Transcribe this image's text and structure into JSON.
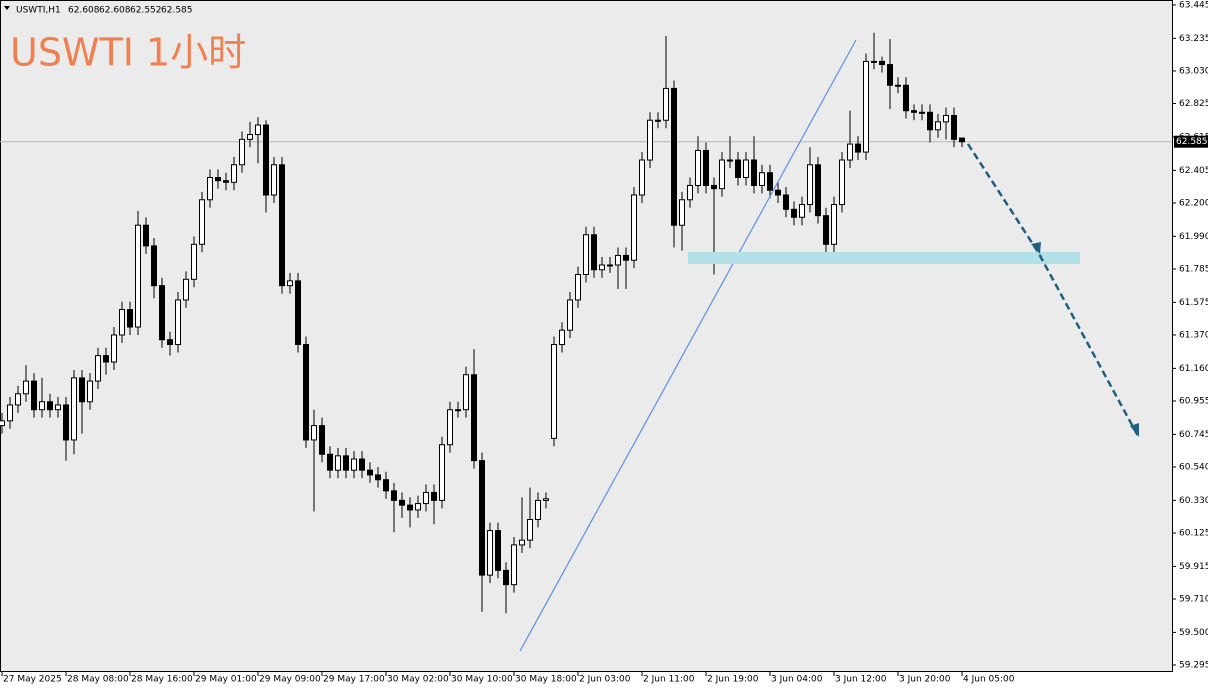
{
  "chart_data": {
    "type": "candlestick",
    "title": "USWTI 1小时",
    "symbol": "USWTI,H1",
    "open": [
      60.8,
      60.83,
      60.93,
      61.0,
      61.08,
      60.9,
      60.95,
      60.9,
      60.93,
      60.71,
      61.1,
      60.95,
      61.08,
      61.24,
      61.2,
      61.37,
      61.53,
      61.42,
      62.06,
      61.93,
      61.68,
      61.34,
      61.31,
      61.59,
      61.72,
      61.94,
      62.22,
      62.36,
      62.34,
      62.33,
      62.44,
      62.6,
      62.63,
      62.69,
      62.25,
      62.44,
      61.68,
      61.71,
      61.31,
      60.71,
      60.8,
      60.62,
      60.52,
      60.61,
      60.52,
      60.59,
      60.52,
      60.49,
      60.46,
      60.39,
      60.33,
      60.3,
      60.27,
      60.31,
      60.38,
      60.33,
      60.68,
      60.9,
      60.9,
      61.12,
      60.58,
      59.86,
      60.14,
      59.89,
      59.8,
      60.05,
      60.08,
      60.21,
      60.33,
      60.72,
      61.31,
      61.4,
      61.59,
      61.75,
      62.0,
      61.78,
      61.81,
      61.81,
      61.87,
      61.84,
      62.25,
      62.47,
      62.72,
      62.72,
      62.92,
      62.06,
      62.22,
      62.31,
      62.53,
      62.31,
      62.29,
      62.47,
      62.47,
      62.36,
      62.47,
      62.31,
      62.39,
      62.28,
      62.25,
      62.16,
      62.11,
      62.19,
      62.44,
      62.12,
      61.94,
      62.19,
      62.47,
      62.57,
      62.52,
      63.09,
      63.09,
      63.07,
      62.94,
      62.94,
      62.78,
      62.77,
      62.77,
      62.66,
      62.71,
      62.75,
      62.608
    ],
    "high": [
      60.88,
      60.98,
      61.05,
      61.18,
      61.13,
      61.1,
      61.0,
      60.98,
      60.98,
      61.15,
      61.15,
      61.13,
      61.29,
      61.29,
      61.42,
      61.58,
      61.58,
      62.15,
      62.11,
      61.98,
      61.73,
      61.39,
      61.64,
      61.77,
      61.99,
      62.27,
      62.41,
      62.41,
      62.39,
      62.49,
      62.65,
      62.71,
      62.74,
      62.72,
      62.49,
      62.49,
      61.76,
      61.76,
      61.36,
      60.9,
      60.85,
      60.67,
      60.66,
      60.66,
      60.64,
      60.64,
      60.57,
      60.54,
      60.51,
      60.44,
      60.38,
      60.35,
      60.36,
      60.43,
      60.43,
      60.73,
      60.95,
      60.95,
      61.17,
      61.28,
      60.63,
      60.19,
      60.19,
      59.94,
      60.1,
      60.35,
      60.41,
      60.38,
      60.38,
      61.36,
      61.45,
      61.64,
      61.8,
      62.05,
      62.05,
      61.86,
      61.86,
      61.92,
      61.92,
      62.3,
      62.52,
      62.77,
      62.77,
      63.25,
      62.97,
      62.27,
      62.36,
      62.62,
      62.58,
      62.36,
      62.52,
      62.62,
      62.52,
      62.52,
      62.62,
      62.44,
      62.44,
      62.33,
      62.3,
      62.21,
      62.24,
      62.55,
      62.49,
      62.17,
      62.24,
      62.52,
      62.78,
      62.62,
      63.14,
      63.27,
      63.12,
      63.23,
      62.99,
      62.99,
      62.82,
      62.82,
      62.82,
      62.76,
      62.8,
      62.8,
      62.608
    ],
    "low": [
      60.75,
      60.78,
      60.88,
      60.95,
      60.85,
      60.85,
      60.85,
      60.85,
      60.58,
      60.62,
      60.75,
      60.9,
      61.03,
      61.12,
      61.15,
      61.32,
      61.37,
      61.37,
      61.88,
      61.6,
      61.29,
      61.24,
      61.26,
      61.54,
      61.67,
      61.89,
      62.17,
      62.29,
      62.28,
      62.28,
      62.39,
      62.55,
      62.45,
      62.14,
      62.2,
      61.63,
      61.63,
      61.26,
      60.66,
      60.26,
      60.57,
      60.47,
      60.47,
      60.47,
      60.47,
      60.47,
      60.44,
      60.41,
      60.34,
      60.13,
      60.22,
      60.16,
      60.22,
      60.26,
      60.18,
      60.28,
      60.63,
      60.85,
      60.85,
      60.53,
      59.63,
      59.81,
      59.84,
      59.62,
      59.75,
      60.0,
      60.03,
      60.16,
      60.28,
      60.67,
      61.26,
      61.35,
      61.54,
      61.7,
      61.73,
      61.73,
      61.76,
      61.66,
      61.66,
      61.79,
      62.2,
      62.42,
      62.67,
      62.67,
      61.92,
      61.9,
      62.17,
      62.26,
      62.26,
      61.75,
      62.24,
      62.42,
      62.31,
      62.31,
      62.26,
      62.26,
      62.23,
      62.2,
      62.11,
      62.06,
      62.06,
      62.14,
      62.07,
      61.83,
      61.89,
      62.14,
      62.42,
      62.47,
      62.47,
      63.04,
      63.02,
      62.79,
      62.89,
      62.73,
      62.72,
      62.72,
      62.58,
      62.61,
      62.6,
      62.55,
      62.552
    ],
    "close": [
      60.83,
      60.93,
      61.0,
      61.08,
      60.9,
      60.95,
      60.9,
      60.93,
      60.71,
      61.1,
      60.95,
      61.08,
      61.24,
      61.2,
      61.37,
      61.53,
      61.42,
      62.06,
      61.93,
      61.68,
      61.34,
      61.31,
      61.59,
      61.72,
      61.94,
      62.22,
      62.36,
      62.34,
      62.33,
      62.44,
      62.6,
      62.63,
      62.69,
      62.25,
      62.44,
      61.68,
      61.71,
      61.31,
      60.71,
      60.8,
      60.62,
      60.52,
      60.61,
      60.52,
      60.59,
      60.52,
      60.49,
      60.46,
      60.39,
      60.33,
      60.3,
      60.27,
      60.31,
      60.38,
      60.33,
      60.68,
      60.9,
      60.9,
      61.12,
      60.58,
      59.86,
      60.14,
      59.89,
      59.8,
      60.05,
      60.08,
      60.21,
      60.33,
      60.34,
      61.31,
      61.4,
      61.59,
      61.75,
      62.0,
      61.78,
      61.81,
      61.81,
      61.87,
      61.84,
      62.25,
      62.47,
      62.72,
      62.72,
      62.92,
      62.06,
      62.22,
      62.31,
      62.53,
      62.31,
      62.29,
      62.47,
      62.47,
      62.36,
      62.47,
      62.31,
      62.39,
      62.28,
      62.25,
      62.16,
      62.11,
      62.19,
      62.44,
      62.12,
      61.94,
      62.19,
      62.47,
      62.57,
      62.52,
      63.09,
      63.09,
      63.07,
      62.94,
      62.94,
      62.78,
      62.77,
      62.77,
      62.66,
      62.71,
      62.75,
      62.6,
      62.585
    ],
    "xlim": [
      -0.25,
      146.25
    ],
    "xticks": [
      {
        "value": 0,
        "label": "27 May 2025"
      },
      {
        "value": 8,
        "label": "28 May 08:00"
      },
      {
        "value": 16,
        "label": "28 May 16:00"
      },
      {
        "value": 24,
        "label": "29 May 01:00"
      },
      {
        "value": 32,
        "label": "29 May 09:00"
      },
      {
        "value": 40,
        "label": "29 May 17:00"
      },
      {
        "value": 48,
        "label": "30 May 02:00"
      },
      {
        "value": 56,
        "label": "30 May 10:00"
      },
      {
        "value": 64,
        "label": "30 May 18:00"
      },
      {
        "value": 72,
        "label": "2 Jun 03:00"
      },
      {
        "value": 80,
        "label": "2 Jun 11:00"
      },
      {
        "value": 88,
        "label": "2 Jun 19:00"
      },
      {
        "value": 96,
        "label": "3 Jun 04:00"
      },
      {
        "value": 104,
        "label": "3 Jun 12:00"
      },
      {
        "value": 112,
        "label": "3 Jun 20:00"
      },
      {
        "value": 120,
        "label": "4 Jun 05:00"
      }
    ],
    "ylim": [
      59.251,
      63.476
    ],
    "yticks": [
      63.445,
      63.235,
      {
        "value": 63.03,
        "label": "63.030"
      },
      62.825,
      62.615,
      62.405,
      {
        "value": 62.2,
        "label": "62.200"
      },
      {
        "value": 61.99,
        "label": "61.990"
      },
      61.785,
      61.575,
      {
        "value": 61.37,
        "label": "61.370"
      },
      {
        "value": 61.16,
        "label": "61.160"
      },
      60.955,
      60.745,
      {
        "value": 60.54,
        "label": "60.540"
      },
      {
        "value": 60.33,
        "label": "60.330"
      },
      60.125,
      59.915,
      {
        "value": 59.71,
        "label": "59.710"
      },
      {
        "value": 59.5,
        "label": "59.500"
      },
      59.295
    ],
    "up_color": "#ffffff",
    "down_color": "#000000"
  }
}
